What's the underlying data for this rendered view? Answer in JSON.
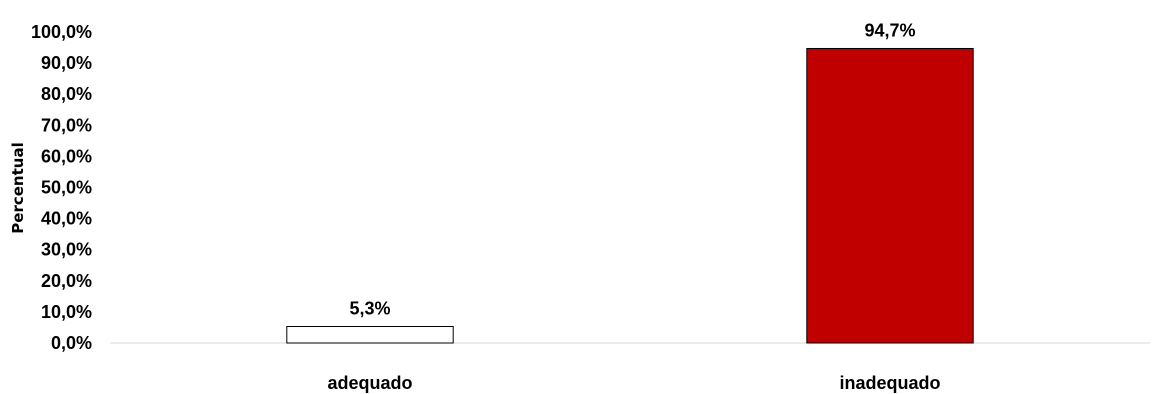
{
  "chart_data": {
    "type": "bar",
    "title": "",
    "xlabel": "",
    "ylabel": "Percentual",
    "categories": [
      "adequado",
      "inadequado"
    ],
    "values": [
      5.3,
      94.7
    ],
    "data_labels": [
      "5,3%",
      "94,7%"
    ],
    "ylim": [
      0,
      100
    ],
    "yticks": [
      0,
      10,
      20,
      30,
      40,
      50,
      60,
      70,
      80,
      90,
      100
    ],
    "ytick_labels": [
      "0,0%",
      "10,0%",
      "20,0%",
      "30,0%",
      "40,0%",
      "50,0%",
      "60,0%",
      "70,0%",
      "80,0%",
      "90,0%",
      "100,0%"
    ],
    "bar_fill_colors": [
      "#ffffff",
      "#c00000"
    ],
    "bar_stroke_color": "#000000",
    "grid": false,
    "legend": "none"
  }
}
